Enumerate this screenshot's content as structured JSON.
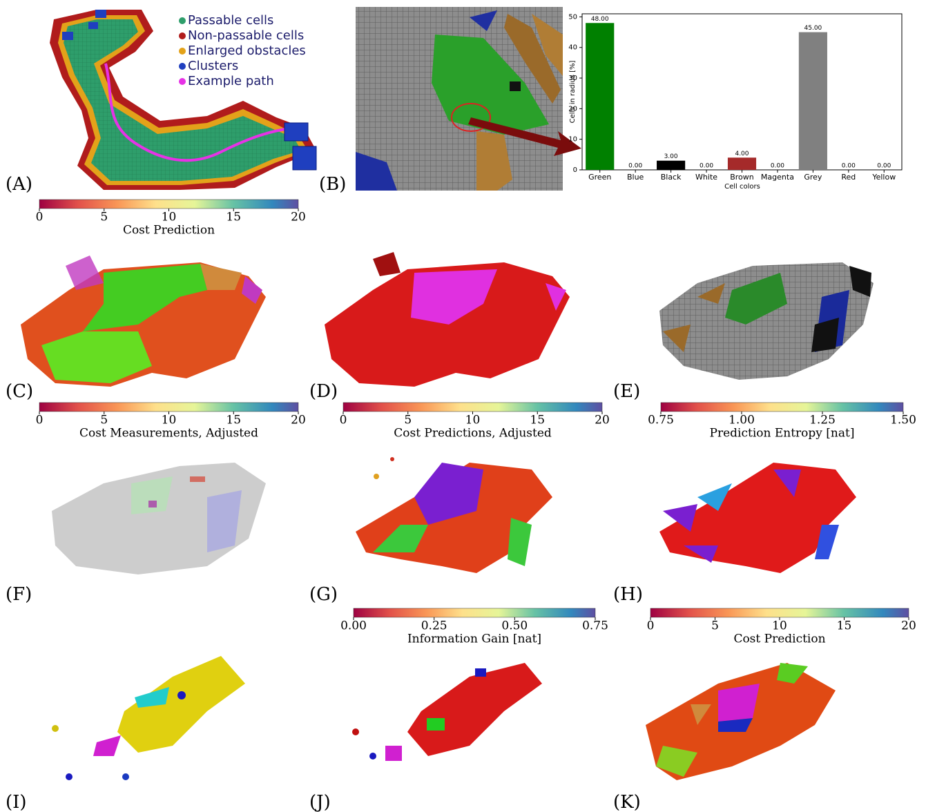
{
  "panels": [
    "(A)",
    "(B)",
    "(C)",
    "(D)",
    "(E)",
    "(F)",
    "(G)",
    "(H)",
    "(I)",
    "(J)",
    "(K)"
  ],
  "legend": [
    {
      "label": "Passable cells",
      "color": "#2e9e6b"
    },
    {
      "label": "Non-passable cells",
      "color": "#b01c1c"
    },
    {
      "label": "Enlarged obstacles",
      "color": "#e3a21a"
    },
    {
      "label": "Clusters",
      "color": "#1f3fbf"
    },
    {
      "label": "Example path",
      "color": "#e632e6"
    }
  ],
  "chart_data": {
    "type": "bar",
    "categories": [
      "Green",
      "Blue",
      "Black",
      "White",
      "Brown",
      "Magenta",
      "Grey",
      "Red",
      "Yellow"
    ],
    "values": [
      48,
      0,
      3,
      0,
      4,
      0,
      45,
      0,
      0
    ],
    "value_labels": [
      "48.00",
      "0.00",
      "3.00",
      "0.00",
      "4.00",
      "0.00",
      "45.00",
      "0.00",
      "0.00"
    ],
    "colors": [
      "#008000",
      "#0000ff",
      "#000000",
      "#ffffff",
      "#a52a2a",
      "#ff00ff",
      "#808080",
      "#ff0000",
      "#ffff00"
    ],
    "ylabel": "Cells in radius [%]",
    "xlabel": "Cell colors",
    "ylim": [
      0,
      51
    ],
    "yticks": [
      0,
      10,
      20,
      30,
      40,
      50
    ]
  },
  "colorbars": [
    {
      "label": "Cost Prediction",
      "lim": [
        0,
        20
      ],
      "ticks": [
        0,
        5,
        10,
        15,
        20
      ]
    },
    {
      "label": "Cost Measurements, Adjusted",
      "lim": [
        0,
        20
      ],
      "ticks": [
        0,
        5,
        10,
        15,
        20
      ]
    },
    {
      "label": "Cost Predictions, Adjusted",
      "lim": [
        0,
        20
      ],
      "ticks": [
        0,
        5,
        10,
        15,
        20
      ]
    },
    {
      "label": "Prediction Entropy [nat]",
      "lim": [
        0.75,
        1.5
      ],
      "ticks": [
        {
          "value": 0.75,
          "label": "0.75"
        },
        {
          "value": 1.0,
          "label": "1.00"
        },
        {
          "value": 1.25,
          "label": "1.25"
        },
        {
          "value": 1.5,
          "label": "1.50"
        }
      ]
    },
    {
      "label": "Information Gain [nat]",
      "lim": [
        0,
        0.75
      ],
      "ticks": [
        {
          "value": 0,
          "label": "0.00"
        },
        {
          "value": 0.25,
          "label": "0.25"
        },
        {
          "value": 0.5,
          "label": "0.50"
        },
        {
          "value": 0.75,
          "label": "0.75"
        }
      ]
    },
    {
      "label": "Cost Prediction",
      "lim": [
        0,
        20
      ],
      "ticks": [
        0,
        5,
        10,
        15,
        20
      ]
    }
  ]
}
